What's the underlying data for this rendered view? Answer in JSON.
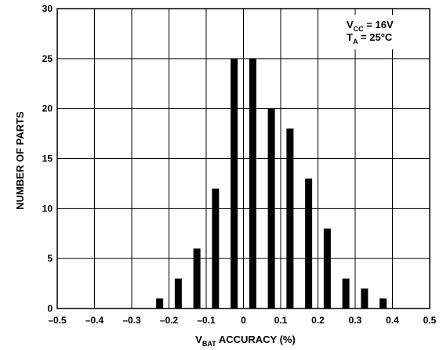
{
  "chart_data": {
    "type": "bar",
    "title": "",
    "xlabel": {
      "base": "V",
      "sub": "BAT",
      "rest": " ACCURACY (%)"
    },
    "ylabel": "NUMBER OF PARTS",
    "xlim": [
      -0.5,
      0.5
    ],
    "ylim": [
      0,
      30
    ],
    "grid": true,
    "x_ticks": [
      -0.5,
      -0.4,
      -0.3,
      -0.2,
      -0.1,
      0,
      0.1,
      0.2,
      0.3,
      0.4,
      0.5
    ],
    "x_tick_labels": [
      "–0.5",
      "–0.4",
      "–0.3",
      "–0.2",
      "–0.1",
      "0",
      "0.1",
      "0.2",
      "0.3",
      "0.4",
      "0.5"
    ],
    "y_ticks": [
      0,
      5,
      10,
      15,
      20,
      25,
      30
    ],
    "y_tick_labels": [
      "0",
      "5",
      "10",
      "15",
      "20",
      "25",
      "30"
    ],
    "x": [
      -0.225,
      -0.175,
      -0.125,
      -0.075,
      -0.025,
      0.025,
      0.075,
      0.125,
      0.175,
      0.225,
      0.275,
      0.325,
      0.375
    ],
    "values": [
      1,
      3,
      6,
      12,
      25,
      25,
      20,
      18,
      13,
      8,
      3,
      2,
      1
    ],
    "annotations": [
      {
        "base": "V",
        "sub": "CC",
        "rest": " = 16V"
      },
      {
        "base": "T",
        "sub": "A",
        "rest": " = 25°C"
      }
    ],
    "bar_color": "#000000"
  }
}
